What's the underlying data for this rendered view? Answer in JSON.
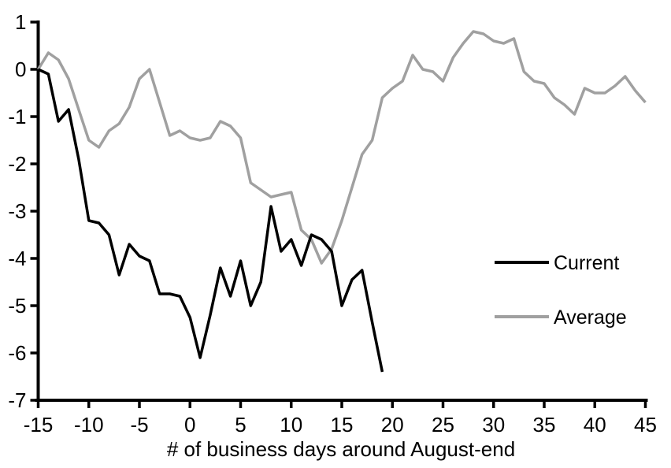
{
  "chart_data": {
    "type": "line",
    "title": "",
    "xlabel": "# of business days around August-end",
    "ylabel": "",
    "xlim": [
      -15,
      45
    ],
    "ylim": [
      -7,
      1
    ],
    "xticks": [
      -15,
      -10,
      -5,
      0,
      5,
      10,
      15,
      20,
      25,
      30,
      35,
      40,
      45
    ],
    "yticks": [
      1,
      0,
      -1,
      -2,
      -3,
      -4,
      -5,
      -6,
      -7
    ],
    "grid": false,
    "legend_position": "middle-right",
    "background_color": "#ffffff",
    "axis_color": "#000000",
    "series": [
      {
        "name": "Current",
        "color": "#000000",
        "x": [
          -15,
          -14,
          -13,
          -12,
          -11,
          -10,
          -9,
          -8,
          -7,
          -6,
          -5,
          -4,
          -3,
          -2,
          -1,
          0,
          1,
          2,
          3,
          4,
          5,
          6,
          7,
          8,
          9,
          10,
          11,
          12,
          13,
          14,
          15,
          16,
          17,
          18,
          19
        ],
        "values": [
          0,
          -0.1,
          -1.1,
          -0.85,
          -1.9,
          -3.2,
          -3.25,
          -3.5,
          -4.35,
          -3.7,
          -3.95,
          -4.05,
          -4.75,
          -4.75,
          -4.8,
          -5.25,
          -6.1,
          -5.2,
          -4.2,
          -4.8,
          -4.05,
          -5.0,
          -4.5,
          -2.9,
          -3.85,
          -3.6,
          -4.15,
          -3.5,
          -3.6,
          -3.85,
          -5.0,
          -4.45,
          -4.25,
          -5.35,
          -6.4
        ]
      },
      {
        "name": "Average",
        "color": "#a0a0a0",
        "x": [
          -15,
          -14,
          -13,
          -12,
          -11,
          -10,
          -9,
          -8,
          -7,
          -6,
          -5,
          -4,
          -3,
          -2,
          -1,
          0,
          1,
          2,
          3,
          4,
          5,
          6,
          7,
          8,
          9,
          10,
          11,
          12,
          13,
          14,
          15,
          16,
          17,
          18,
          19,
          20,
          21,
          22,
          23,
          24,
          25,
          26,
          27,
          28,
          29,
          30,
          31,
          32,
          33,
          34,
          35,
          36,
          37,
          38,
          39,
          40,
          41,
          42,
          43,
          44,
          45
        ],
        "values": [
          0,
          0.35,
          0.2,
          -0.2,
          -0.85,
          -1.5,
          -1.65,
          -1.3,
          -1.15,
          -0.8,
          -0.2,
          0,
          -0.7,
          -1.4,
          -1.3,
          -1.45,
          -1.5,
          -1.45,
          -1.1,
          -1.2,
          -1.45,
          -2.4,
          -2.55,
          -2.7,
          -2.65,
          -2.6,
          -3.4,
          -3.6,
          -4.1,
          -3.8,
          -3.2,
          -2.5,
          -1.8,
          -1.5,
          -0.6,
          -0.4,
          -0.25,
          0.3,
          0,
          -0.05,
          -0.25,
          0.25,
          0.55,
          0.8,
          0.75,
          0.6,
          0.55,
          0.65,
          -0.05,
          -0.25,
          -0.3,
          -0.6,
          -0.75,
          -0.95,
          -0.4,
          -0.5,
          -0.5,
          -0.35,
          -0.15,
          -0.45,
          -0.7
        ]
      }
    ]
  }
}
